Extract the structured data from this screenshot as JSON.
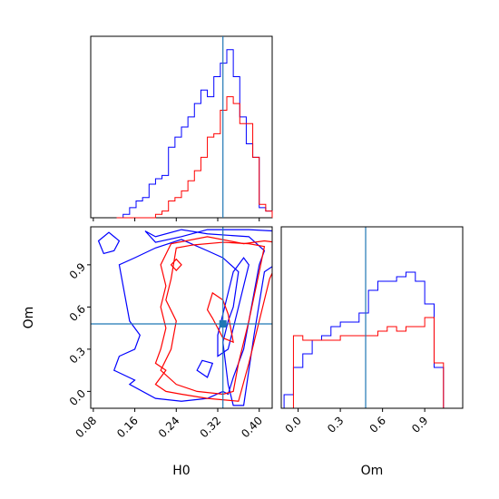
{
  "chart_data": {
    "type": "corner",
    "parameters": [
      "H0",
      "Om"
    ],
    "truth": {
      "H0": 0.33,
      "Om": 0.48
    },
    "colors": {
      "blue": "#0000ff",
      "red": "#ff0000",
      "truth": "#1f77b4"
    },
    "panels": {
      "h0_hist": {
        "xlim": [
          0.075,
          0.425
        ],
        "bin_edges": [
          0.125,
          0.1375,
          0.15,
          0.1625,
          0.175,
          0.1875,
          0.2,
          0.2125,
          0.225,
          0.2375,
          0.25,
          0.2625,
          0.275,
          0.2875,
          0.3,
          0.3125,
          0.325,
          0.3375,
          0.35,
          0.3625,
          0.375,
          0.3875,
          0.4,
          0.4125,
          0.425
        ],
        "blue_counts": [
          0,
          0.5,
          1.5,
          2.5,
          3,
          5,
          5.8,
          6.3,
          10.5,
          12,
          13.5,
          15,
          17,
          19,
          18,
          21,
          23,
          25,
          21,
          15,
          11,
          9,
          1.5,
          1
        ],
        "red_counts": [
          0,
          0,
          0,
          0,
          0,
          0,
          0.5,
          1,
          2.5,
          3,
          4,
          5.5,
          7,
          9,
          12,
          12.5,
          16,
          18,
          17,
          14,
          14,
          9,
          2,
          1
        ]
      },
      "h0_om": {
        "xlim": [
          0.075,
          0.425
        ],
        "ylim": [
          -0.12,
          1.17
        ],
        "x_ticks": [
          0.08,
          0.16,
          0.24,
          0.32,
          0.4
        ],
        "x_tick_labels": [
          "0.08",
          "0.16",
          "0.24",
          "0.32",
          "0.40"
        ],
        "y_ticks": [
          0.0,
          0.3,
          0.6,
          0.9
        ],
        "y_tick_labels": [
          "0.0",
          "0.3",
          "0.6",
          "0.9"
        ],
        "xlabel": "H0",
        "ylabel": "Om",
        "contours": [
          {
            "series": "blue",
            "points": [
              [
                0.38,
                1.15
              ],
              [
                0.43,
                1.14
              ],
              [
                0.43,
                0.9
              ],
              [
                0.41,
                0.85
              ],
              [
                0.39,
                0.4
              ],
              [
                0.37,
                -0.1
              ],
              [
                0.35,
                -0.1
              ],
              [
                0.34,
                0.05
              ],
              [
                0.33,
                0.35
              ],
              [
                0.34,
                0.5
              ],
              [
                0.35,
                0.6
              ],
              [
                0.36,
                0.85
              ],
              [
                0.33,
                0.95
              ],
              [
                0.3,
                1.0
              ],
              [
                0.25,
                1.08
              ],
              [
                0.2,
                1.02
              ],
              [
                0.16,
                0.95
              ],
              [
                0.13,
                0.9
              ],
              [
                0.14,
                0.7
              ],
              [
                0.15,
                0.5
              ],
              [
                0.17,
                0.4
              ],
              [
                0.16,
                0.3
              ],
              [
                0.13,
                0.25
              ],
              [
                0.12,
                0.15
              ],
              [
                0.16,
                0.08
              ],
              [
                0.15,
                0.05
              ],
              [
                0.2,
                -0.05
              ],
              [
                0.25,
                -0.07
              ],
              [
                0.3,
                -0.05
              ],
              [
                0.33,
                0.0
              ],
              [
                0.34,
                -0.02
              ],
              [
                0.35,
                0.1
              ],
              [
                0.37,
                0.3
              ],
              [
                0.38,
                0.5
              ],
              [
                0.39,
                0.7
              ],
              [
                0.4,
                0.9
              ],
              [
                0.41,
                1.0
              ],
              [
                0.38,
                1.1
              ],
              [
                0.3,
                1.12
              ],
              [
                0.25,
                1.15
              ],
              [
                0.2,
                1.1
              ],
              [
                0.18,
                1.14
              ],
              [
                0.2,
                1.06
              ],
              [
                0.25,
                1.1
              ],
              [
                0.3,
                1.15
              ],
              [
                0.38,
                1.15
              ]
            ],
            "closed": true
          },
          {
            "series": "blue",
            "points": [
              [
                0.09,
                1.07
              ],
              [
                0.11,
                1.13
              ],
              [
                0.13,
                1.07
              ],
              [
                0.12,
                1.0
              ],
              [
                0.1,
                0.98
              ],
              [
                0.09,
                1.07
              ]
            ],
            "closed": true
          },
          {
            "series": "blue",
            "points": [
              [
                0.28,
                0.15
              ],
              [
                0.3,
                0.1
              ],
              [
                0.31,
                0.2
              ],
              [
                0.29,
                0.22
              ],
              [
                0.28,
                0.15
              ]
            ],
            "closed": true
          },
          {
            "series": "blue",
            "points": [
              [
                0.32,
                0.25
              ],
              [
                0.34,
                0.3
              ],
              [
                0.35,
                0.45
              ],
              [
                0.36,
                0.6
              ],
              [
                0.37,
                0.75
              ],
              [
                0.38,
                0.9
              ],
              [
                0.37,
                0.95
              ],
              [
                0.35,
                0.85
              ],
              [
                0.34,
                0.7
              ],
              [
                0.33,
                0.55
              ],
              [
                0.32,
                0.4
              ],
              [
                0.32,
                0.25
              ]
            ],
            "closed": true
          },
          {
            "series": "red",
            "points": [
              [
                0.27,
                1.04
              ],
              [
                0.33,
                1.06
              ],
              [
                0.38,
                1.05
              ],
              [
                0.41,
                1.03
              ],
              [
                0.4,
                0.85
              ],
              [
                0.38,
                0.5
              ],
              [
                0.36,
                0.2
              ],
              [
                0.35,
                0.0
              ],
              [
                0.33,
                -0.02
              ],
              [
                0.28,
                0.0
              ],
              [
                0.24,
                0.05
              ],
              [
                0.21,
                0.15
              ],
              [
                0.23,
                0.3
              ],
              [
                0.24,
                0.5
              ],
              [
                0.22,
                0.65
              ],
              [
                0.23,
                0.8
              ],
              [
                0.24,
                1.02
              ],
              [
                0.27,
                1.04
              ]
            ],
            "closed": true
          },
          {
            "series": "red",
            "points": [
              [
                0.37,
                1.05
              ],
              [
                0.41,
                1.07
              ],
              [
                0.43,
                1.06
              ],
              [
                0.43,
                0.88
              ],
              [
                0.42,
                0.8
              ],
              [
                0.4,
                0.5
              ],
              [
                0.38,
                0.2
              ],
              [
                0.36,
                -0.07
              ],
              [
                0.3,
                -0.05
              ],
              [
                0.25,
                -0.02
              ],
              [
                0.22,
                0.0
              ],
              [
                0.2,
                0.05
              ],
              [
                0.22,
                0.15
              ],
              [
                0.2,
                0.2
              ],
              [
                0.21,
                0.3
              ],
              [
                0.22,
                0.45
              ],
              [
                0.21,
                0.6
              ],
              [
                0.22,
                0.75
              ],
              [
                0.21,
                0.9
              ],
              [
                0.23,
                1.05
              ],
              [
                0.3,
                1.1
              ],
              [
                0.37,
                1.05
              ]
            ],
            "closed": true
          },
          {
            "series": "red",
            "points": [
              [
                0.23,
                0.9
              ],
              [
                0.24,
                0.94
              ],
              [
                0.25,
                0.9
              ],
              [
                0.24,
                0.86
              ],
              [
                0.23,
                0.9
              ]
            ],
            "closed": true
          },
          {
            "series": "red",
            "points": [
              [
                0.3,
                0.58
              ],
              [
                0.31,
                0.52
              ],
              [
                0.33,
                0.38
              ],
              [
                0.35,
                0.35
              ],
              [
                0.34,
                0.55
              ],
              [
                0.33,
                0.65
              ],
              [
                0.31,
                0.7
              ],
              [
                0.3,
                0.58
              ]
            ],
            "closed": true
          }
        ]
      },
      "om_hist": {
        "xlim": [
          -0.12,
          1.17
        ],
        "x_ticks": [
          0.0,
          0.3,
          0.6,
          0.9
        ],
        "x_tick_labels": [
          "0.0",
          "0.3",
          "0.6",
          "0.9"
        ],
        "xlabel": "Om",
        "bin_edges": [
          -0.1,
          -0.0333,
          0.0333,
          0.1,
          0.1667,
          0.2333,
          0.3,
          0.3667,
          0.4333,
          0.5,
          0.5667,
          0.6333,
          0.7,
          0.7667,
          0.8333,
          0.9,
          0.9667,
          1.0333,
          1.1
        ],
        "blue_counts": [
          1.5,
          4.5,
          6,
          7.5,
          8,
          9,
          9.5,
          9.5,
          10.5,
          13,
          14,
          14,
          14.5,
          15,
          14,
          11.5,
          4.5,
          0
        ],
        "red_counts": [
          0,
          8,
          7.5,
          7.5,
          7.5,
          7.5,
          8,
          8,
          8,
          8,
          8.5,
          9,
          8.5,
          9,
          9,
          10,
          5,
          0
        ],
        "ymax": 20
      }
    }
  }
}
